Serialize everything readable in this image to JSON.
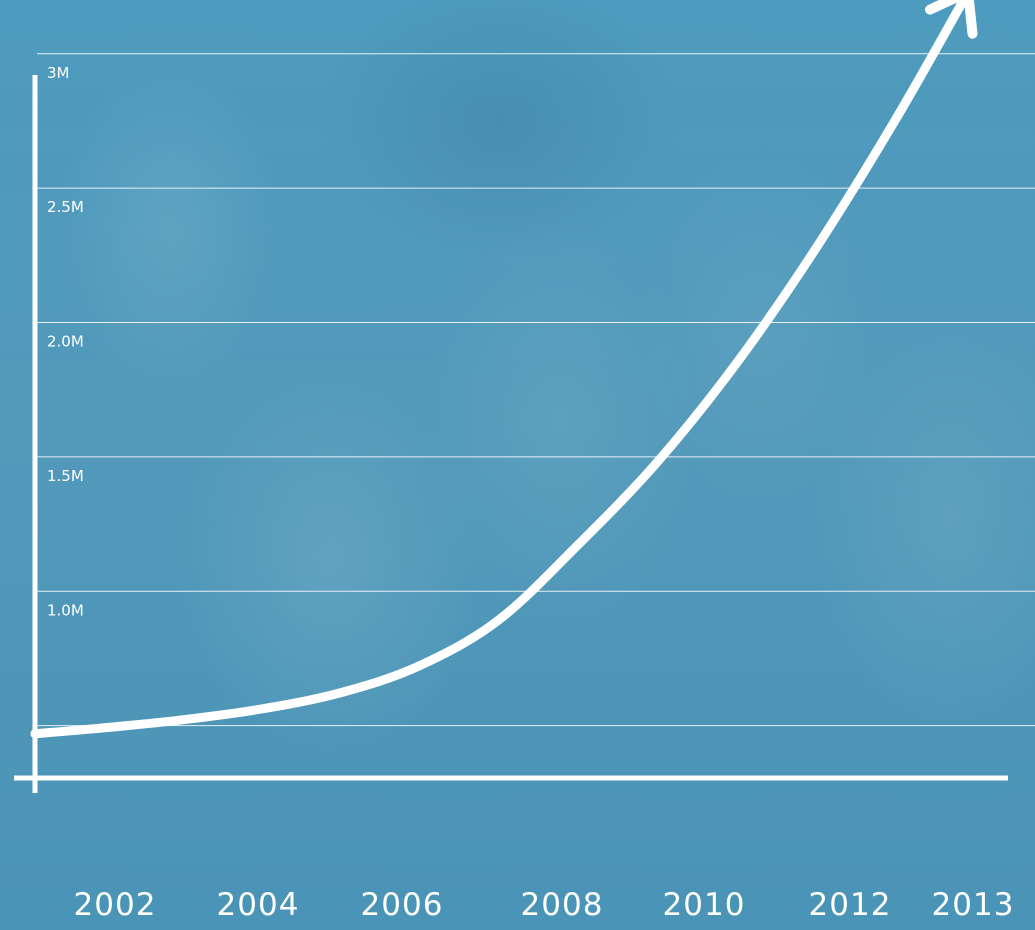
{
  "chart_data": {
    "type": "line",
    "x_tick_labels": [
      "2002",
      "2004",
      "2006",
      "2008",
      "2010",
      "2012",
      "2013"
    ],
    "y_tick_labels": [
      "1.0M",
      "1.5M",
      "2.0M",
      "2.5M",
      "3M"
    ],
    "y_gridlines": [
      0.5,
      1.0,
      1.5,
      2.0,
      2.5,
      3.0
    ],
    "ylim": [
      0,
      3.2
    ],
    "xlim": [
      2001.2,
      2013.4
    ],
    "series": [
      {
        "x": [
          2001.2,
          2002,
          2003,
          2004,
          2005,
          2006,
          2007,
          2008,
          2009,
          2010,
          2011,
          2012,
          2012.9
        ],
        "values": [
          0.47,
          0.49,
          0.52,
          0.56,
          0.62,
          0.72,
          0.89,
          1.17,
          1.48,
          1.85,
          2.28,
          2.76,
          3.23
        ],
        "color": "#ffffff"
      }
    ],
    "arrow_at_end": true,
    "grid": true,
    "colors": {
      "background": "#4f9cbf",
      "line": "#ffffff",
      "grid": "rgba(255,255,255,0.85)"
    }
  }
}
